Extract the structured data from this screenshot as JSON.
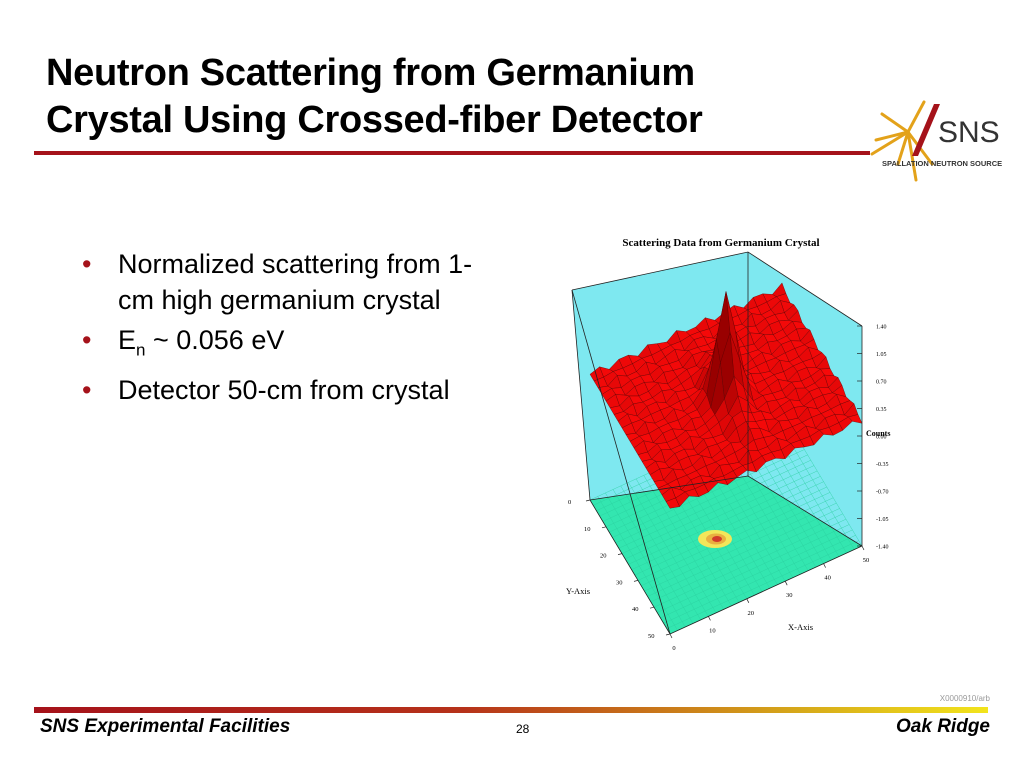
{
  "slide": {
    "title_line1": "Neutron Scattering from Germanium",
    "title_line2": "Crystal Using Crossed-fiber Detector",
    "bullets": [
      {
        "text": "Normalized scattering from 1-cm high germanium crystal"
      },
      {
        "pre": "E",
        "sub": "n",
        "post": " ~ 0.056 eV"
      },
      {
        "text": "Detector 50-cm from crystal"
      }
    ],
    "bullet_glyph": "•",
    "colors": {
      "accent": "#a5121a",
      "surface": "#e00c0c",
      "box_fill": "#7ee8f0",
      "floor": "#33e6b0"
    }
  },
  "logo": {
    "text": "SNS",
    "subtext": "SPALLATION NEUTRON SOURCE"
  },
  "chart_data": {
    "type": "surface3d",
    "title": "Scattering Data from Germanium Crystal",
    "xlabel": "X-Axis",
    "ylabel": "Y-Axis",
    "zlabel": "Counts",
    "x_ticks": [
      "0",
      "10",
      "20",
      "30",
      "40",
      "50"
    ],
    "y_ticks": [
      "0",
      "10",
      "20",
      "30",
      "40",
      "50"
    ],
    "z_ticks": [
      "1.40",
      "1.05",
      "0.70",
      "0.35",
      "0.00",
      "-0.35",
      "-0.70",
      "-1.05",
      "-1.40"
    ],
    "xlim": [
      0,
      50
    ],
    "ylim": [
      0,
      50
    ],
    "zlim": [
      -1.4,
      1.4
    ],
    "peak": {
      "x": 25,
      "y": 25,
      "z": 1.2
    },
    "background_level": 0.2
  },
  "footer": {
    "left": "SNS Experimental Facilities",
    "page": "28",
    "right": "Oak Ridge",
    "code": "X0000910/arb"
  }
}
